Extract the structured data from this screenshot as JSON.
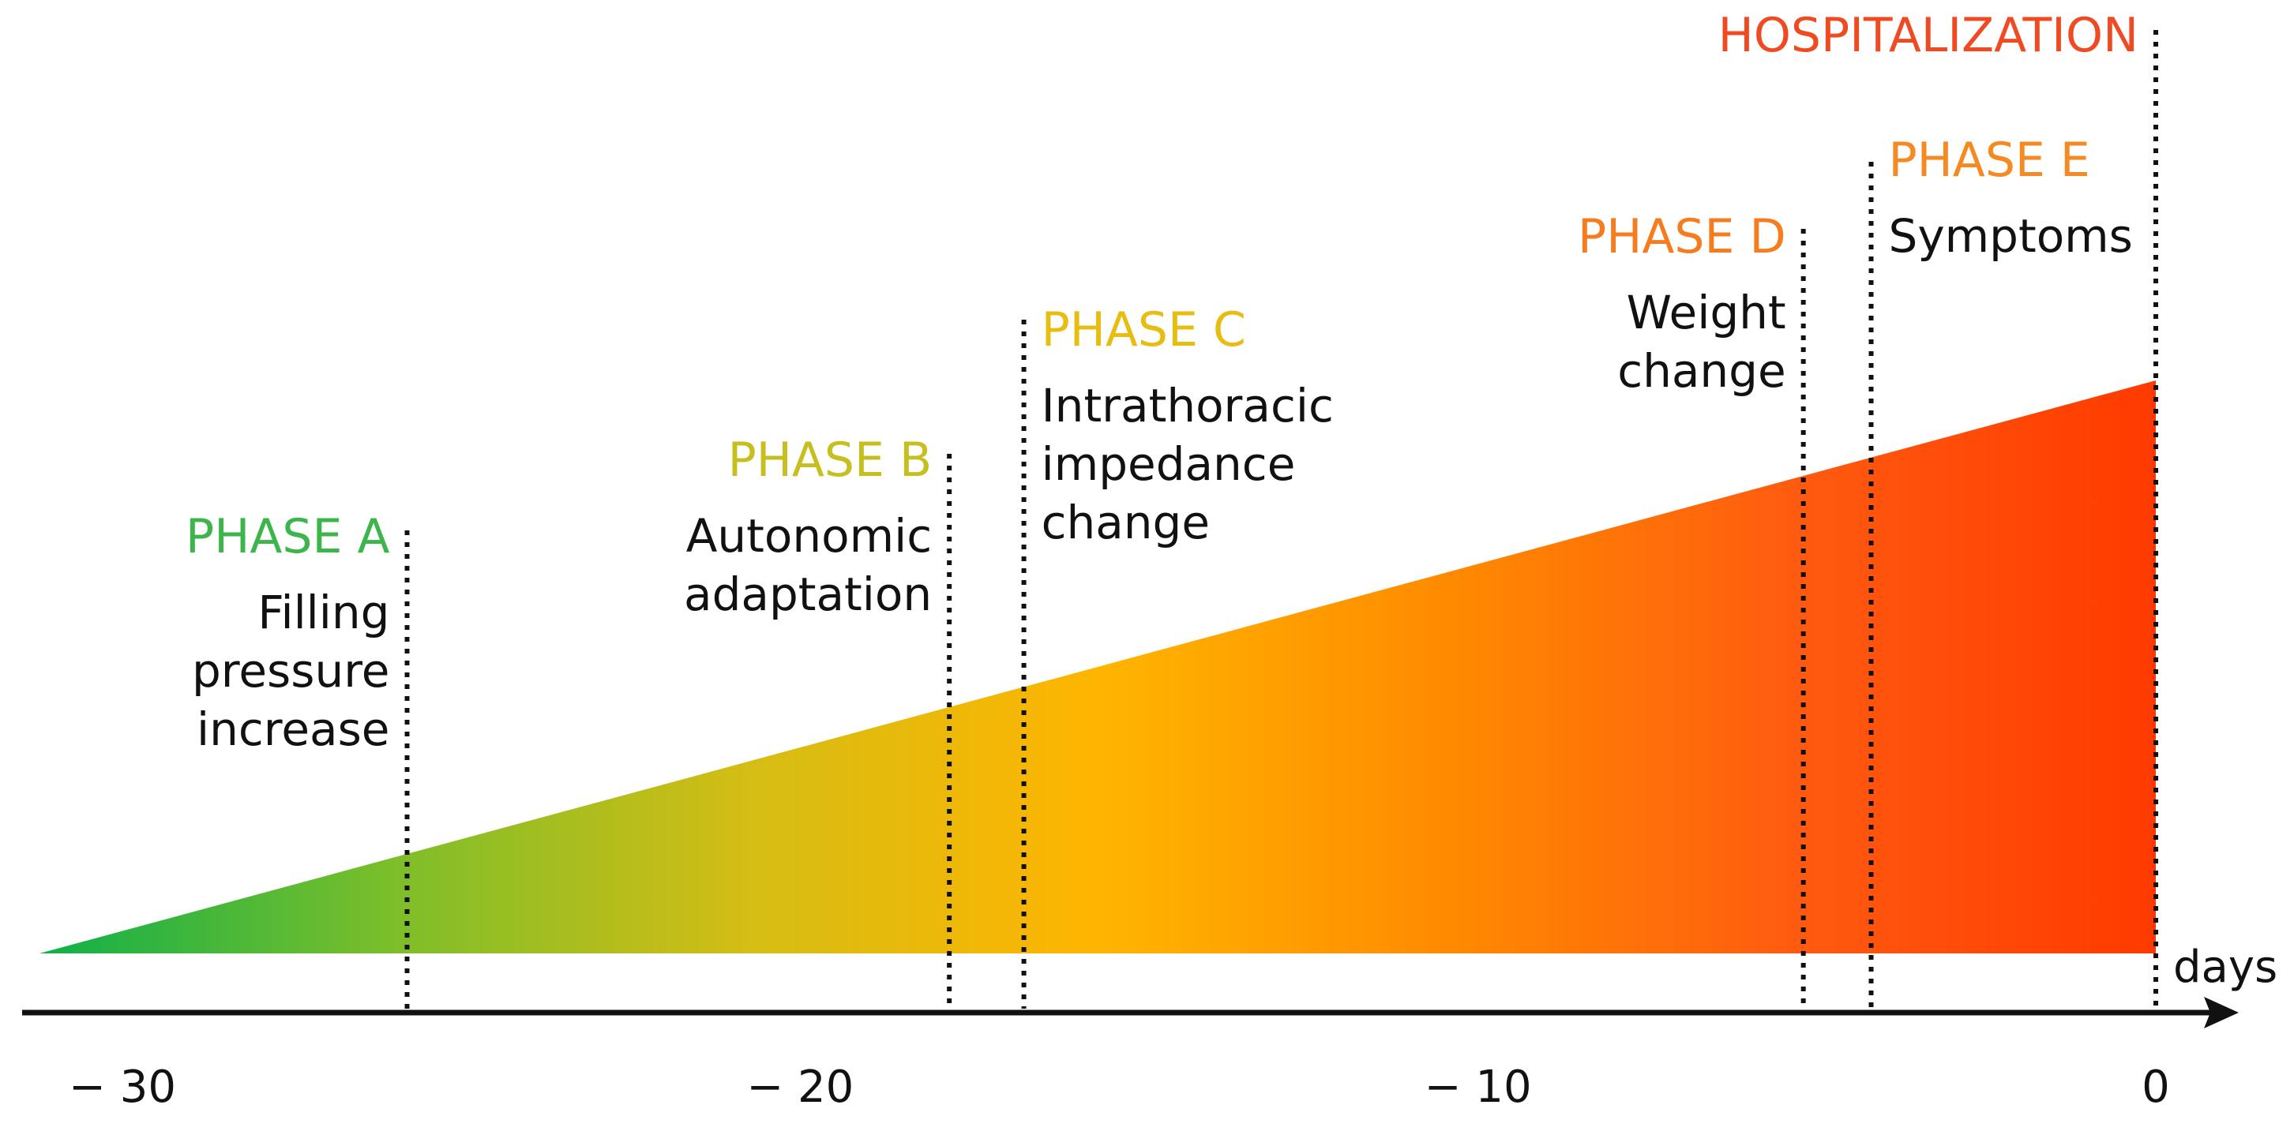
{
  "axis": {
    "unit_label": "days",
    "ticks": [
      {
        "value": -30,
        "label": "− 30"
      },
      {
        "value": -20,
        "label": "− 20"
      },
      {
        "value": -10,
        "label": "− 10"
      },
      {
        "value": 0,
        "label": "0"
      }
    ]
  },
  "events": [
    {
      "id": "phase-a",
      "day": -25.8,
      "title": "PHASE A",
      "lines": [
        "Filling",
        "pressure",
        "increase"
      ],
      "color": "#3cb54a",
      "side": "left"
    },
    {
      "id": "phase-b",
      "day": -17.8,
      "title": "PHASE B",
      "lines": [
        "Autonomic",
        "adaptation"
      ],
      "color": "#c6bf1f",
      "side": "left"
    },
    {
      "id": "phase-c",
      "day": -16.7,
      "title": "PHASE C",
      "lines": [
        "Intrathoracic",
        "impedance",
        "change"
      ],
      "color": "#e8bd12",
      "side": "right"
    },
    {
      "id": "phase-d",
      "day": -5.2,
      "title": "PHASE D",
      "lines": [
        "Weight",
        "change"
      ],
      "color": "#f57d20",
      "side": "left"
    },
    {
      "id": "phase-e",
      "day": -4.2,
      "title": "PHASE E",
      "lines": [
        "Symptoms"
      ],
      "color": "#f58a22",
      "side": "right"
    },
    {
      "id": "hospitalization",
      "day": 0,
      "title": "HOSPITALIZATION",
      "lines": [],
      "color": "#f04a23",
      "side": "left"
    }
  ],
  "gradient_colors": [
    "#10b04a",
    "#7cbe2a",
    "#d4bd14",
    "#ffb500",
    "#ff8a00",
    "#ff5a10",
    "#ff3a00"
  ],
  "text_color": "#111111"
}
